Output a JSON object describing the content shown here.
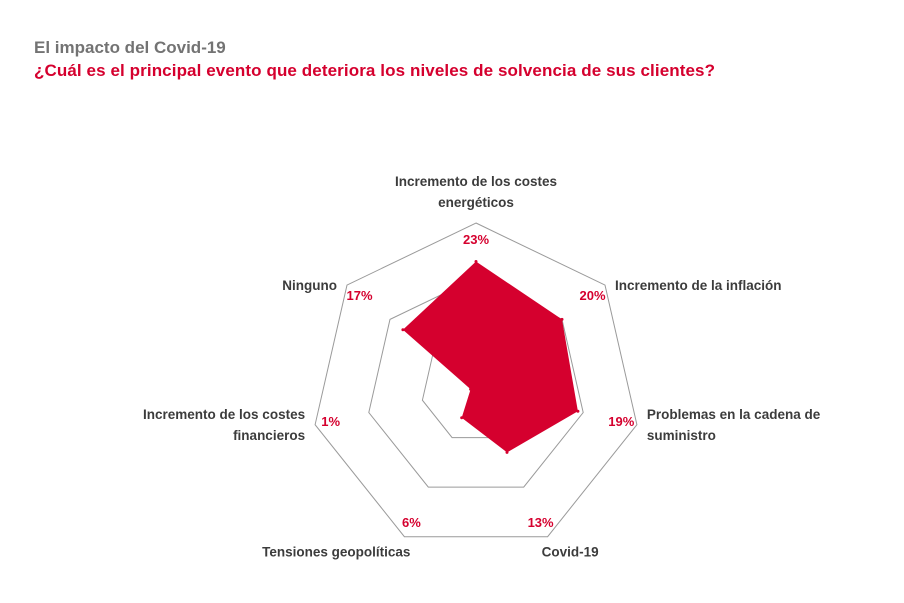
{
  "header": {
    "title": "El impacto del Covid-19",
    "subtitle": "¿Cuál es el principal evento que deteriora los niveles de solvencia de sus clientes?"
  },
  "chart_data": {
    "type": "radar",
    "rmax": 30,
    "rings": [
      10,
      20,
      30
    ],
    "fill_color": "#d5002e",
    "grid_color": "#9a9a9a",
    "categories": [
      {
        "lines": [
          "Incremento de los costes",
          "energéticos"
        ],
        "value": 23,
        "value_label": "23%"
      },
      {
        "lines": [
          "Incremento de la inflación"
        ],
        "value": 20,
        "value_label": "20%"
      },
      {
        "lines": [
          "Problemas en la cadena de",
          "suministro"
        ],
        "value": 19,
        "value_label": "19%"
      },
      {
        "lines": [
          "Covid-19"
        ],
        "value": 13,
        "value_label": "13%"
      },
      {
        "lines": [
          "Tensiones geopolíticas"
        ],
        "value": 6,
        "value_label": "6%"
      },
      {
        "lines": [
          "Incremento de los costes",
          "financieros"
        ],
        "value": 1,
        "value_label": "1%"
      },
      {
        "lines": [
          "Ninguno"
        ],
        "value": 17,
        "value_label": "17%"
      }
    ]
  }
}
